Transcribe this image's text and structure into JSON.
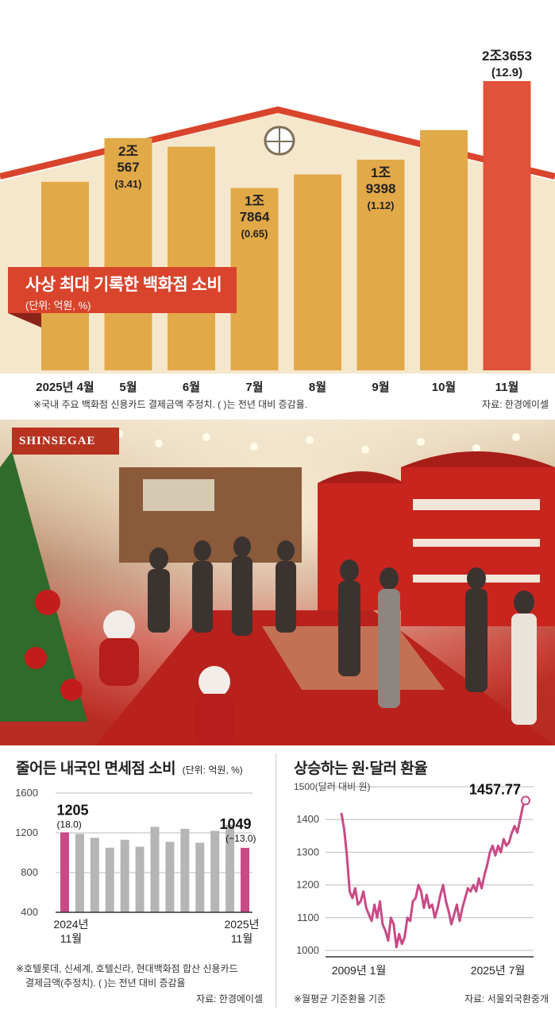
{
  "top_chart": {
    "title": "사상 최대 기록한 백화점 소비",
    "unit": "(단위: 억원, %)",
    "note": "※국내 주요 백화점 신용카드 결제금액 추정치. ( )는 전년 대비 증감율.",
    "source": "자료: 한경에이셀",
    "colors": {
      "bar": "#e2a948",
      "highlight": "#e0533a",
      "roof": "#d9442c"
    }
  },
  "duty_free": {
    "title": "줄어든 내국인 면세점 소비",
    "unit": "(단위: 억원, %)",
    "note_line1": "※호텔롯데, 신세계, 호텔신라, 현대백화점 합산 신용카드",
    "note_line2": "결제금액(추정치). ( )는 전년 대비 증감율",
    "source": "자료: 한경에이셀",
    "start_label_1": "2024년",
    "start_label_2": "11월",
    "end_label_1": "2025년",
    "end_label_2": "11월",
    "first_value_label": "1205",
    "first_change_label": "(18.0)",
    "last_value_label": "1049",
    "last_change_label": "(−13.0)",
    "colors": {
      "gray": "#b5b5b5",
      "highlight": "#c84a86"
    }
  },
  "fx": {
    "title": "상승하는 원·달러 환율",
    "note": "※월평균 기준환율 기준",
    "source": "자료: 서울외국환중개",
    "start_label": "2009년 1월",
    "end_label": "2025년 7월",
    "last_value_label": "1457.77",
    "ytick_top_unit": "(달러 대비 원)",
    "colors": {
      "line": "#c84a86"
    }
  },
  "chart_data": [
    {
      "type": "bar",
      "categories": [
        "2025년 4월",
        "5월",
        "6월",
        "7월",
        "8월",
        "9월",
        "10월",
        "11월"
      ],
      "values": [
        null,
        20567,
        null,
        17864,
        null,
        19398,
        null,
        23653
      ],
      "value_labels": [
        "",
        "2조\n567",
        "",
        "1조\n7864",
        "",
        "1조\n9398",
        "",
        "2조3653"
      ],
      "change_labels": [
        "",
        "(3.41)",
        "",
        "(0.65)",
        "",
        "(1.12)",
        "",
        "(12.9)"
      ],
      "estimated_values": [
        18200,
        20567,
        20100,
        17864,
        18600,
        19398,
        21000,
        23653
      ],
      "title": "사상 최대 기록한 백화점 소비"
    },
    {
      "type": "bar",
      "categories": [
        "2024년 11월",
        "",
        "",
        "",
        "",
        "",
        "",
        "",
        "",
        "",
        "",
        "",
        "2025년 11월"
      ],
      "values": [
        1205,
        1190,
        1150,
        1050,
        1130,
        1060,
        1260,
        1110,
        1240,
        1100,
        1220,
        1280,
        1049
      ],
      "ylim": [
        400,
        1600
      ],
      "yticks": [
        "400",
        "800",
        "1200",
        "1600"
      ],
      "title": "줄어든 내국인 면세점 소비"
    },
    {
      "type": "line",
      "x_range": [
        "2009년 1월",
        "2025년 7월"
      ],
      "ylim": [
        1000,
        1500
      ],
      "yticks": [
        "1000",
        "1100",
        "1200",
        "1300",
        "1400",
        "1500"
      ],
      "values": [
        1420,
        1370,
        1290,
        1180,
        1160,
        1190,
        1140,
        1150,
        1180,
        1130,
        1110,
        1090,
        1140,
        1100,
        1150,
        1080,
        1060,
        1030,
        1100,
        1080,
        1010,
        1050,
        1020,
        1040,
        1100,
        1090,
        1150,
        1160,
        1200,
        1180,
        1130,
        1170,
        1130,
        1140,
        1100,
        1130,
        1170,
        1200,
        1150,
        1120,
        1080,
        1110,
        1140,
        1090,
        1130,
        1160,
        1190,
        1180,
        1200,
        1180,
        1220,
        1190,
        1230,
        1260,
        1300,
        1320,
        1290,
        1320,
        1300,
        1340,
        1320,
        1330,
        1360,
        1380,
        1360,
        1400,
        1440,
        1457.77
      ],
      "title": "상승하는 원·달러 환율"
    }
  ]
}
